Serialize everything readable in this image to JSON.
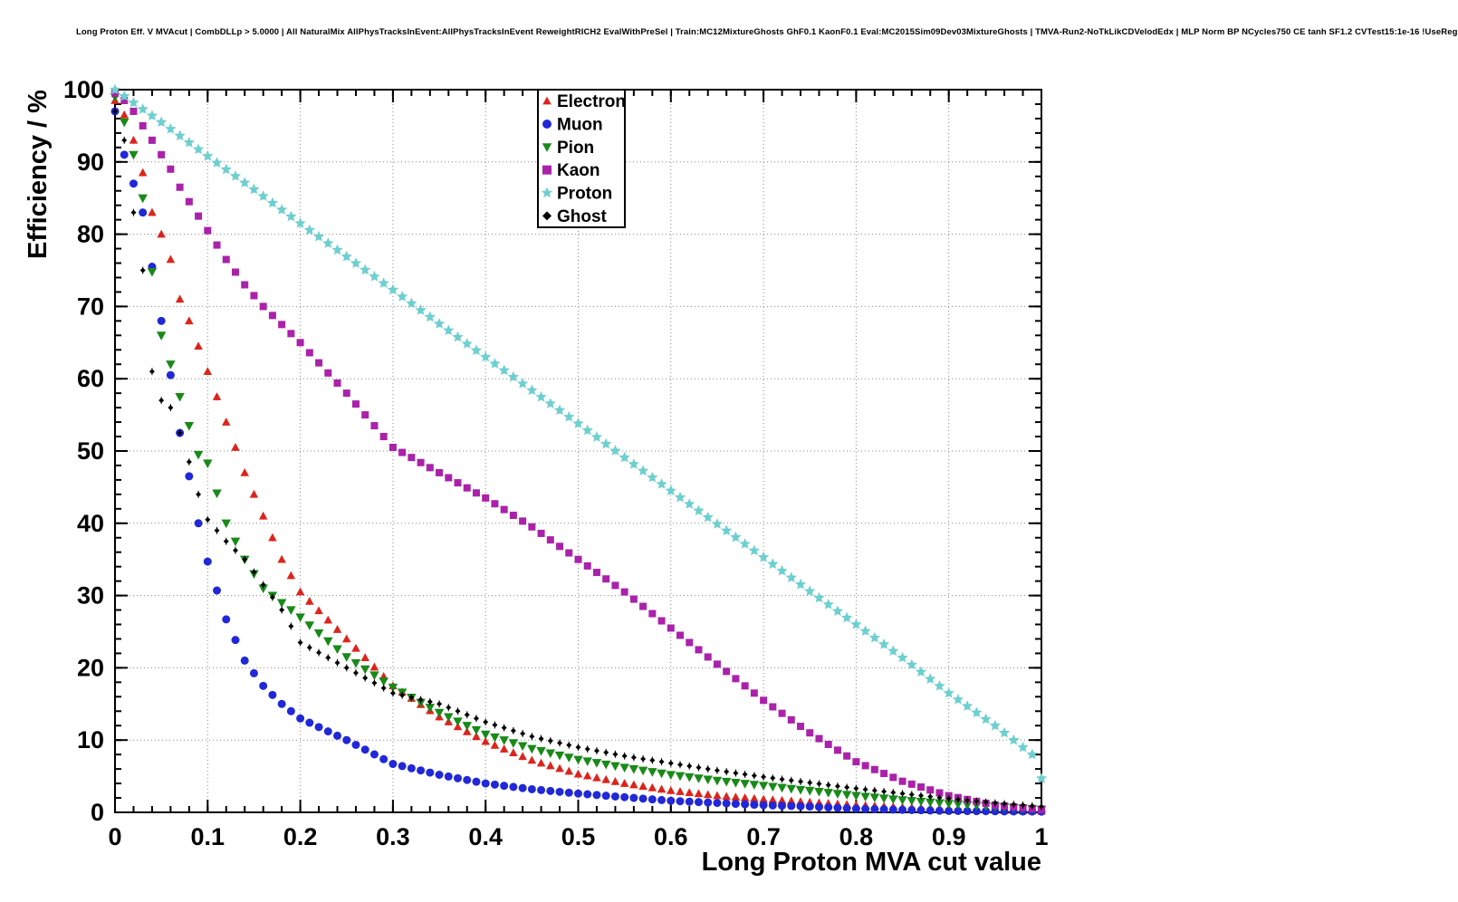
{
  "chart_data": {
    "type": "scatter",
    "title": "Long Proton Eff. V MVAcut | CombDLLp > 5.0000 | All NaturalMix AllPhysTracksInEvent:AllPhysTracksInEvent ReweightRICH2 EvalWithPreSel | Train:MC12MixtureGhosts GhF0.1 KaonF0.1 Eval:MC2015Sim09Dev03MixtureGhosts | TMVA-Run2-NoTkLikCDVelodEdx | MLP Norm BP NCycles750 CE tanh SF1.2 CVTest15:1e-16 !UseReg",
    "xlabel": "Long Proton MVA cut value",
    "ylabel": "Efficiency / %",
    "xlim": [
      0,
      1
    ],
    "ylim": [
      0,
      100
    ],
    "grid": "dotted",
    "grid_color": "#888888",
    "marker_step": 0.01,
    "x_ticks": {
      "values": [
        0,
        0.1,
        0.2,
        0.3,
        0.4,
        0.5,
        0.6,
        0.7,
        0.8,
        0.9,
        1
      ],
      "labels": [
        "0",
        "0.1",
        "0.2",
        "0.3",
        "0.4",
        "0.5",
        "0.6",
        "0.7",
        "0.8",
        "0.9",
        "1"
      ],
      "minor_step": 0.02
    },
    "y_ticks": {
      "values": [
        0,
        10,
        20,
        30,
        40,
        50,
        60,
        70,
        80,
        90,
        100
      ],
      "labels": [
        "0",
        "10",
        "20",
        "30",
        "40",
        "50",
        "60",
        "70",
        "80",
        "90",
        "100"
      ],
      "minor_step": 2
    },
    "legend": {
      "position": "top-center",
      "entries": [
        "Electron",
        "Muon",
        "Pion",
        "Kaon",
        "Proton",
        "Ghost"
      ]
    },
    "series": [
      {
        "name": "Electron",
        "marker": "triangle-up",
        "color": "#dd241c",
        "size": 5,
        "x": [
          0,
          0.01,
          0.02,
          0.03,
          0.04,
          0.05,
          0.06,
          0.07,
          0.08,
          0.09,
          0.1,
          0.12,
          0.14,
          0.16,
          0.18,
          0.2,
          0.25,
          0.3,
          0.35,
          0.4,
          0.45,
          0.5,
          0.55,
          0.6,
          0.65,
          0.7,
          0.75,
          0.8,
          0.85,
          0.9,
          0.95,
          1.0
        ],
        "y": [
          98.5,
          96.5,
          93,
          88.5,
          83,
          80,
          76.5,
          71,
          68,
          64.5,
          61,
          54,
          47,
          41,
          35,
          30.5,
          24,
          17.5,
          13.2,
          9.8,
          7.2,
          5.3,
          4.0,
          3.0,
          2.3,
          1.8,
          1.4,
          1.0,
          0.7,
          0.5,
          0.3,
          0.15
        ]
      },
      {
        "name": "Muon",
        "marker": "circle",
        "color": "#2128d8",
        "size": 4.5,
        "x": [
          0,
          0.01,
          0.02,
          0.03,
          0.04,
          0.05,
          0.06,
          0.07,
          0.08,
          0.09,
          0.1,
          0.12,
          0.14,
          0.16,
          0.18,
          0.2,
          0.25,
          0.3,
          0.35,
          0.4,
          0.45,
          0.5,
          0.55,
          0.6,
          0.65,
          0.7,
          0.75,
          0.8,
          0.85,
          0.9,
          0.95,
          1.0
        ],
        "y": [
          97,
          91,
          87,
          83,
          75.5,
          68,
          60.5,
          52.5,
          46.5,
          40,
          34.7,
          26.7,
          21,
          17.5,
          15,
          13,
          10,
          6.7,
          5.2,
          4.0,
          3.2,
          2.6,
          2.1,
          1.6,
          1.3,
          1.0,
          0.8,
          0.5,
          0.35,
          0.2,
          0.15,
          0.1
        ]
      },
      {
        "name": "Pion",
        "marker": "triangle-down",
        "color": "#188a18",
        "size": 5.5,
        "x": [
          0,
          0.01,
          0.02,
          0.03,
          0.04,
          0.05,
          0.06,
          0.07,
          0.08,
          0.09,
          0.1,
          0.12,
          0.14,
          0.16,
          0.18,
          0.2,
          0.25,
          0.3,
          0.35,
          0.4,
          0.45,
          0.5,
          0.55,
          0.6,
          0.65,
          0.7,
          0.75,
          0.8,
          0.85,
          0.9,
          0.95,
          1.0
        ],
        "y": [
          99,
          95.5,
          91,
          85,
          74.8,
          66,
          62,
          57.5,
          53.5,
          49.5,
          48.3,
          40,
          35,
          31,
          29,
          27,
          21.5,
          17.3,
          13.8,
          10.8,
          8.8,
          7.3,
          6.2,
          5.2,
          4.4,
          3.7,
          3.0,
          2.3,
          1.7,
          1.2,
          0.8,
          0.4
        ]
      },
      {
        "name": "Kaon",
        "marker": "square",
        "color": "#aa22aa",
        "size": 4,
        "x": [
          0,
          0.01,
          0.02,
          0.03,
          0.04,
          0.05,
          0.06,
          0.07,
          0.08,
          0.09,
          0.1,
          0.12,
          0.14,
          0.16,
          0.18,
          0.2,
          0.25,
          0.3,
          0.35,
          0.4,
          0.45,
          0.5,
          0.55,
          0.6,
          0.65,
          0.7,
          0.75,
          0.8,
          0.85,
          0.9,
          0.95,
          1.0
        ],
        "y": [
          99.5,
          98.5,
          97,
          95,
          93,
          91,
          89,
          86.5,
          84.5,
          82.5,
          80.5,
          76.5,
          73,
          70,
          67.5,
          65,
          58,
          50.5,
          47,
          43.5,
          39.5,
          35,
          30.5,
          25.5,
          20.5,
          15.5,
          11,
          7,
          4.3,
          2.3,
          1.0,
          0.4
        ]
      },
      {
        "name": "Proton",
        "marker": "star",
        "color": "#6ecfcf",
        "size": 6.5,
        "x": [
          0,
          0.05,
          0.1,
          0.15,
          0.2,
          0.25,
          0.3,
          0.35,
          0.4,
          0.45,
          0.5,
          0.55,
          0.6,
          0.65,
          0.7,
          0.75,
          0.8,
          0.85,
          0.9,
          0.93,
          0.95,
          0.97,
          0.99,
          1.0
        ],
        "y": [
          100,
          95.5,
          90.8,
          86.2,
          81.5,
          76.9,
          72.3,
          67.6,
          63,
          58.4,
          53.8,
          49.1,
          44.5,
          39.9,
          35.3,
          30.6,
          26,
          21.4,
          16.5,
          13.8,
          12,
          10,
          8,
          4.7
        ]
      },
      {
        "name": "Ghost",
        "marker": "diamond",
        "color": "#000000",
        "size": 3,
        "x": [
          0,
          0.01,
          0.02,
          0.03,
          0.04,
          0.05,
          0.06,
          0.07,
          0.08,
          0.09,
          0.1,
          0.12,
          0.14,
          0.16,
          0.18,
          0.2,
          0.25,
          0.3,
          0.35,
          0.4,
          0.45,
          0.5,
          0.55,
          0.6,
          0.65,
          0.7,
          0.75,
          0.8,
          0.85,
          0.9,
          0.95,
          1.0
        ],
        "y": [
          97,
          93,
          83,
          75,
          61,
          57,
          56,
          52.5,
          48.5,
          44,
          40.5,
          37.5,
          35,
          31.5,
          28,
          23.5,
          20,
          16.5,
          15,
          12.5,
          10.5,
          9.0,
          7.8,
          6.8,
          5.8,
          4.9,
          4.1,
          3.3,
          2.6,
          1.9,
          1.3,
          0.8
        ]
      }
    ]
  }
}
